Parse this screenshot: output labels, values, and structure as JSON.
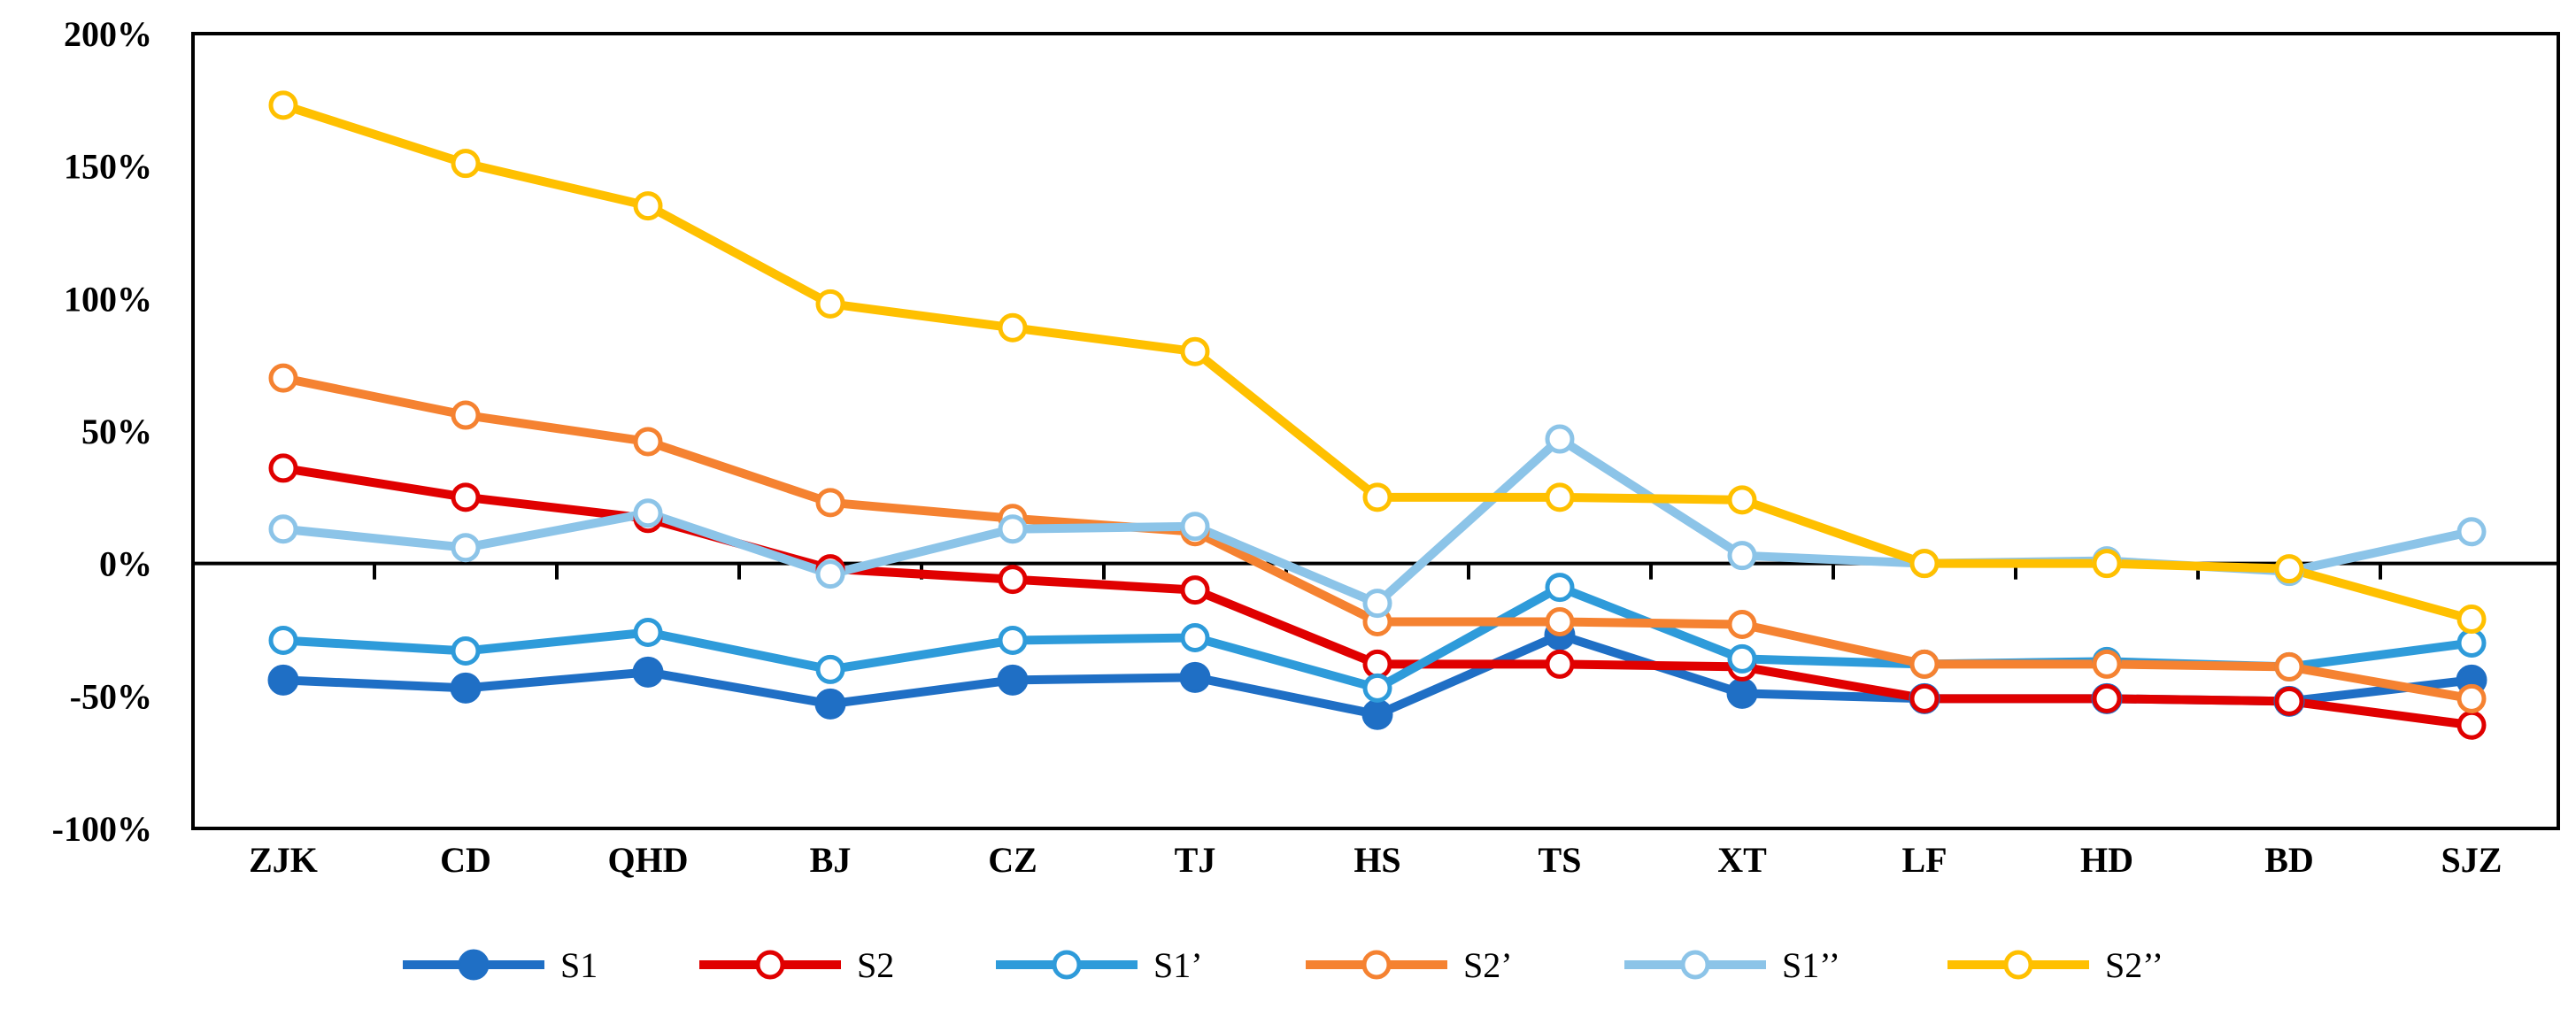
{
  "chart_data": {
    "type": "line",
    "title": "",
    "xlabel": "",
    "ylabel": "",
    "categories": [
      "ZJK",
      "CD",
      "QHD",
      "BJ",
      "CZ",
      "TJ",
      "HS",
      "TS",
      "XT",
      "LF",
      "HD",
      "BD",
      "SJZ"
    ],
    "ylim": [
      -100,
      200
    ],
    "yticks": [
      200,
      150,
      100,
      50,
      0,
      -50,
      -100
    ],
    "ytick_labels": [
      "200%",
      "150%",
      "100%",
      "50%",
      "0%",
      "-50%",
      "-100%"
    ],
    "grid": false,
    "legend_position": "bottom",
    "series": [
      {
        "name": "S1",
        "color": "#1F6FC5",
        "marker": "filled",
        "values": [
          -44,
          -47,
          -41,
          -53,
          -44,
          -43,
          -57,
          -27,
          -49,
          -51,
          -51,
          -52,
          -44
        ]
      },
      {
        "name": "S2",
        "color": "#E00000",
        "marker": "hollow",
        "values": [
          36,
          25,
          17,
          -2,
          -6,
          -10,
          -38,
          -38,
          -39,
          -51,
          -51,
          -52,
          -61
        ]
      },
      {
        "name": "S1’",
        "color": "#2E9BDA",
        "marker": "hollow",
        "values": [
          -29,
          -33,
          -26,
          -40,
          -29,
          -28,
          -47,
          -9,
          -36,
          -38,
          -37,
          -39,
          -30
        ]
      },
      {
        "name": "S2’",
        "color": "#F58231",
        "marker": "hollow",
        "values": [
          70,
          56,
          46,
          23,
          17,
          12,
          -22,
          -22,
          -23,
          -38,
          -38,
          -39,
          -51
        ]
      },
      {
        "name": "S1’’",
        "color": "#8CC4E8",
        "marker": "hollow",
        "values": [
          13,
          6,
          19,
          -4,
          13,
          14,
          -15,
          47,
          3,
          0,
          1,
          -3,
          12
        ]
      },
      {
        "name": "S2’’",
        "color": "#FFC000",
        "marker": "hollow",
        "values": [
          173,
          151,
          135,
          98,
          89,
          80,
          25,
          25,
          24,
          0,
          0,
          -2,
          -21
        ]
      }
    ]
  }
}
